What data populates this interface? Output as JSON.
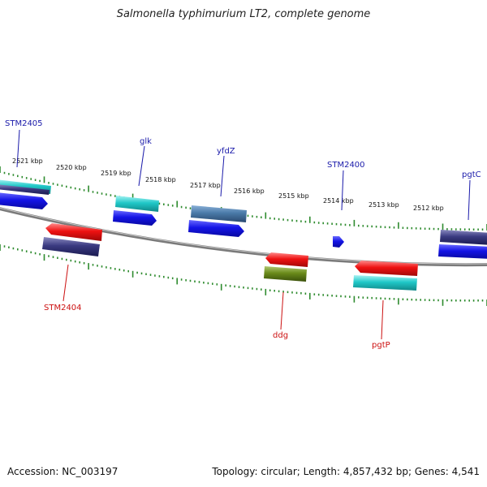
{
  "title": "Salmonella typhimurium LT2, complete genome",
  "footer": {
    "accession": "Accession: NC_003197",
    "summary": "Topology: circular; Length: 4,857,432 bp; Genes: 4,541"
  },
  "colors": {
    "backbone": "#8a8a8a",
    "tick": "#2e8b2e",
    "top_label": "#1a1aaa",
    "bottom_label": "#cc1111",
    "blue": "#1414e6",
    "teal": "#20c8c8",
    "steel": "#4a7aa8",
    "navy": "#3a3a80",
    "red": "#ee1111",
    "olive": "#6a8a1a"
  },
  "kbp_labels": [
    "2521 kbp",
    "2520 kbp",
    "2519 kbp",
    "2518 kbp",
    "2517 kbp",
    "2516 kbp",
    "2515 kbp",
    "2514 kbp",
    "2513 kbp",
    "2512 kbp"
  ],
  "genes_top": [
    {
      "name": "STM2405"
    },
    {
      "name": "glk"
    },
    {
      "name": "yfdZ"
    },
    {
      "name": "STM2400"
    },
    {
      "name": "pgtC"
    }
  ],
  "genes_bottom": [
    {
      "name": "STM2404"
    },
    {
      "name": "ddg"
    },
    {
      "name": "pgtP"
    }
  ]
}
